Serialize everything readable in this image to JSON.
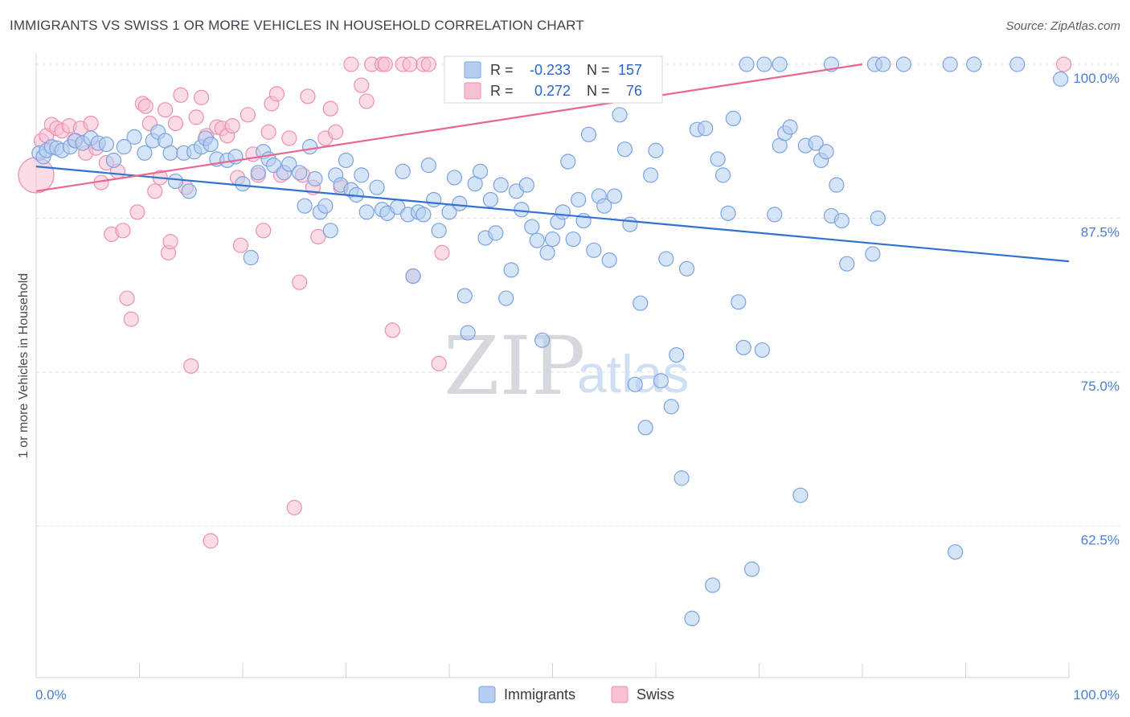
{
  "title": "IMMIGRANTS VS SWISS 1 OR MORE VEHICLES IN HOUSEHOLD CORRELATION CHART",
  "source": "Source: ZipAtlas.com",
  "watermark": {
    "zip": "ZIP",
    "atlas": "atlas"
  },
  "colors": {
    "immigrants_fill": "#b5cdf0",
    "immigrants_stroke": "#7aa3e0",
    "immigrants_line": "#2f72d2",
    "swiss_fill": "#f7c0d2",
    "swiss_stroke": "#ee8fb0",
    "swiss_line": "#e8668f",
    "tick_text": "#4a7fd0",
    "grid": "#dcdfe4"
  },
  "legend_box": {
    "row1": {
      "r_label": "R =",
      "r_value": "-0.233",
      "n_label": "N =",
      "n_value": "157"
    },
    "row2": {
      "r_label": "R =",
      "r_value": "0.272",
      "n_label": "N =",
      "n_value": "76"
    }
  },
  "bottom_legend": [
    "Immigrants",
    "Swiss"
  ],
  "chart_data": {
    "type": "scatter",
    "title": "IMMIGRANTS VS SWISS 1 OR MORE VEHICLES IN HOUSEHOLD CORRELATION CHART",
    "xlabel": "",
    "ylabel": "1 or more Vehicles in Household",
    "xlim": [
      0,
      100
    ],
    "ylim": [
      50.5,
      100.5
    ],
    "x_tick_labels": {
      "left": "0.0%",
      "right": "100.0%"
    },
    "y_ticks": [
      {
        "value": 100,
        "label": "100.0%"
      },
      {
        "value": 87.5,
        "label": "87.5%"
      },
      {
        "value": 75,
        "label": "75.0%"
      },
      {
        "value": 62.5,
        "label": "62.5%"
      }
    ],
    "grid": "horizontal dashed",
    "legend_position": "bottom-center",
    "series": [
      {
        "name": "Immigrants",
        "r": -0.233,
        "n": 157,
        "trend": [
          [
            0,
            91.7
          ],
          [
            100,
            84.0
          ]
        ],
        "points": [
          [
            0.3,
            92.8
          ],
          [
            0.7,
            92.5
          ],
          [
            1.0,
            93.0
          ],
          [
            1.5,
            93.3
          ],
          [
            2.0,
            93.2
          ],
          [
            2.5,
            93.0
          ],
          [
            3.3,
            93.3
          ],
          [
            3.8,
            93.8
          ],
          [
            4.5,
            93.6
          ],
          [
            5.3,
            94.0
          ],
          [
            6.0,
            93.6
          ],
          [
            6.8,
            93.5
          ],
          [
            7.5,
            92.2
          ],
          [
            8.5,
            93.3
          ],
          [
            9.5,
            94.1
          ],
          [
            10.5,
            92.8
          ],
          [
            11.3,
            93.8
          ],
          [
            11.8,
            94.5
          ],
          [
            12.5,
            93.8
          ],
          [
            13.0,
            92.8
          ],
          [
            13.5,
            90.5
          ],
          [
            14.3,
            92.8
          ],
          [
            14.8,
            89.7
          ],
          [
            15.3,
            92.9
          ],
          [
            16.0,
            93.3
          ],
          [
            16.4,
            94.0
          ],
          [
            16.9,
            93.5
          ],
          [
            17.5,
            92.3
          ],
          [
            18.5,
            92.2
          ],
          [
            19.3,
            92.5
          ],
          [
            20.0,
            90.3
          ],
          [
            20.8,
            84.3
          ],
          [
            21.5,
            91.2
          ],
          [
            22.0,
            92.9
          ],
          [
            22.5,
            92.3
          ],
          [
            23.0,
            91.8
          ],
          [
            24.0,
            91.2
          ],
          [
            24.5,
            91.9
          ],
          [
            25.5,
            91.2
          ],
          [
            26.0,
            88.5
          ],
          [
            26.5,
            93.3
          ],
          [
            27.0,
            90.7
          ],
          [
            27.5,
            88.0
          ],
          [
            28.0,
            88.5
          ],
          [
            28.5,
            86.5
          ],
          [
            29.0,
            91.0
          ],
          [
            29.5,
            90.2
          ],
          [
            30.0,
            92.2
          ],
          [
            30.5,
            89.8
          ],
          [
            31.0,
            89.4
          ],
          [
            31.5,
            91.0
          ],
          [
            32.0,
            88.0
          ],
          [
            33.0,
            90.0
          ],
          [
            33.5,
            88.2
          ],
          [
            34.0,
            87.9
          ],
          [
            35.0,
            88.4
          ],
          [
            35.5,
            91.3
          ],
          [
            36.0,
            87.8
          ],
          [
            36.5,
            82.8
          ],
          [
            37.0,
            88.0
          ],
          [
            37.5,
            87.8
          ],
          [
            38.0,
            91.8
          ],
          [
            38.5,
            89.0
          ],
          [
            39.0,
            86.5
          ],
          [
            40.0,
            88.0
          ],
          [
            40.5,
            90.8
          ],
          [
            41.0,
            88.7
          ],
          [
            41.5,
            81.2
          ],
          [
            41.8,
            78.2
          ],
          [
            42.5,
            90.3
          ],
          [
            43.0,
            91.3
          ],
          [
            43.5,
            85.9
          ],
          [
            44.0,
            89.0
          ],
          [
            44.5,
            86.3
          ],
          [
            45.0,
            90.2
          ],
          [
            45.5,
            81.0
          ],
          [
            46.0,
            83.3
          ],
          [
            46.5,
            89.7
          ],
          [
            47.0,
            88.2
          ],
          [
            47.5,
            90.2
          ],
          [
            48.0,
            86.8
          ],
          [
            48.5,
            85.7
          ],
          [
            49.0,
            77.6
          ],
          [
            49.5,
            84.7
          ],
          [
            50.0,
            85.8
          ],
          [
            50.5,
            87.2
          ],
          [
            51.0,
            88.0
          ],
          [
            51.5,
            92.1
          ],
          [
            52.0,
            85.8
          ],
          [
            52.5,
            89.0
          ],
          [
            53.0,
            87.3
          ],
          [
            53.5,
            94.3
          ],
          [
            54.0,
            84.9
          ],
          [
            54.5,
            89.3
          ],
          [
            55.0,
            88.5
          ],
          [
            55.5,
            84.1
          ],
          [
            56.0,
            89.3
          ],
          [
            56.5,
            95.9
          ],
          [
            57.0,
            93.1
          ],
          [
            57.5,
            87.0
          ],
          [
            58.0,
            74.0
          ],
          [
            58.5,
            80.6
          ],
          [
            59.0,
            70.5
          ],
          [
            59.5,
            91.0
          ],
          [
            60.0,
            93.0
          ],
          [
            60.5,
            74.3
          ],
          [
            61.0,
            84.2
          ],
          [
            61.5,
            72.2
          ],
          [
            62.0,
            76.4
          ],
          [
            62.5,
            66.4
          ],
          [
            63.0,
            83.4
          ],
          [
            63.5,
            55.0
          ],
          [
            64.0,
            94.7
          ],
          [
            64.8,
            94.8
          ],
          [
            65.5,
            57.7
          ],
          [
            66.0,
            92.3
          ],
          [
            66.5,
            91.0
          ],
          [
            67.0,
            87.9
          ],
          [
            67.5,
            95.6
          ],
          [
            68.0,
            80.7
          ],
          [
            68.5,
            77.0
          ],
          [
            69.3,
            59.0
          ],
          [
            70.3,
            76.8
          ],
          [
            71.5,
            87.8
          ],
          [
            72.0,
            93.4
          ],
          [
            72.5,
            94.4
          ],
          [
            73.0,
            94.9
          ],
          [
            74.0,
            65.0
          ],
          [
            74.5,
            93.4
          ],
          [
            75.5,
            93.6
          ],
          [
            76.0,
            92.2
          ],
          [
            76.5,
            92.9
          ],
          [
            77.0,
            87.7
          ],
          [
            77.5,
            90.2
          ],
          [
            78.0,
            87.3
          ],
          [
            78.5,
            83.8
          ],
          [
            81.0,
            84.6
          ],
          [
            81.5,
            87.5
          ],
          [
            70.5,
            100.0
          ],
          [
            68.8,
            100.0
          ],
          [
            72.0,
            100.0
          ],
          [
            77.0,
            100.0
          ],
          [
            81.2,
            100.0
          ],
          [
            84.0,
            100.0
          ],
          [
            88.5,
            100.0
          ],
          [
            90.8,
            100.0
          ],
          [
            95.0,
            100.0
          ],
          [
            99.2,
            98.8
          ],
          [
            89.0,
            60.4
          ],
          [
            82.0,
            100.0
          ]
        ]
      },
      {
        "name": "Swiss",
        "r": 0.272,
        "n": 76,
        "trend": [
          [
            0,
            89.7
          ],
          [
            80,
            100.0
          ]
        ],
        "points": [
          [
            0.0,
            91.0
          ],
          [
            0.5,
            93.8
          ],
          [
            1.0,
            94.2
          ],
          [
            1.5,
            95.1
          ],
          [
            2.0,
            94.8
          ],
          [
            2.5,
            94.6
          ],
          [
            3.2,
            95.0
          ],
          [
            3.7,
            93.8
          ],
          [
            4.3,
            94.8
          ],
          [
            4.8,
            92.8
          ],
          [
            5.3,
            95.2
          ],
          [
            5.8,
            93.2
          ],
          [
            6.3,
            90.4
          ],
          [
            6.8,
            92.0
          ],
          [
            7.3,
            86.2
          ],
          [
            7.9,
            91.3
          ],
          [
            8.4,
            86.5
          ],
          [
            8.8,
            81.0
          ],
          [
            9.2,
            79.3
          ],
          [
            9.8,
            88.0
          ],
          [
            10.3,
            96.8
          ],
          [
            10.6,
            96.6
          ],
          [
            11.0,
            95.2
          ],
          [
            11.5,
            89.7
          ],
          [
            12.0,
            90.8
          ],
          [
            12.5,
            96.3
          ],
          [
            12.8,
            84.7
          ],
          [
            13.0,
            85.6
          ],
          [
            13.5,
            95.2
          ],
          [
            14.0,
            97.5
          ],
          [
            14.5,
            90.0
          ],
          [
            15.0,
            75.5
          ],
          [
            15.5,
            95.7
          ],
          [
            16.0,
            97.3
          ],
          [
            16.5,
            94.2
          ],
          [
            16.9,
            61.3
          ],
          [
            17.5,
            94.9
          ],
          [
            18.0,
            94.8
          ],
          [
            18.5,
            94.2
          ],
          [
            19.0,
            95.0
          ],
          [
            19.5,
            90.8
          ],
          [
            19.8,
            85.3
          ],
          [
            20.5,
            95.9
          ],
          [
            21.0,
            92.7
          ],
          [
            21.5,
            91.0
          ],
          [
            22.0,
            86.5
          ],
          [
            22.5,
            94.5
          ],
          [
            22.8,
            96.8
          ],
          [
            23.3,
            97.6
          ],
          [
            23.7,
            91.0
          ],
          [
            24.5,
            94.0
          ],
          [
            25.0,
            64.0
          ],
          [
            25.5,
            82.3
          ],
          [
            25.8,
            91.0
          ],
          [
            26.3,
            97.4
          ],
          [
            26.8,
            90.0
          ],
          [
            27.3,
            86.0
          ],
          [
            28.0,
            94.0
          ],
          [
            28.5,
            96.4
          ],
          [
            29.0,
            94.5
          ],
          [
            29.5,
            90.0
          ],
          [
            30.5,
            100.0
          ],
          [
            31.5,
            98.3
          ],
          [
            32.0,
            97.0
          ],
          [
            32.5,
            100.0
          ],
          [
            33.5,
            100.0
          ],
          [
            33.8,
            100.0
          ],
          [
            34.5,
            78.4
          ],
          [
            35.5,
            100.0
          ],
          [
            36.2,
            100.0
          ],
          [
            36.5,
            82.8
          ],
          [
            37.5,
            100.0
          ],
          [
            38.0,
            100.0
          ],
          [
            39.0,
            75.7
          ],
          [
            39.3,
            84.7
          ],
          [
            99.5,
            100.0
          ]
        ]
      }
    ]
  }
}
